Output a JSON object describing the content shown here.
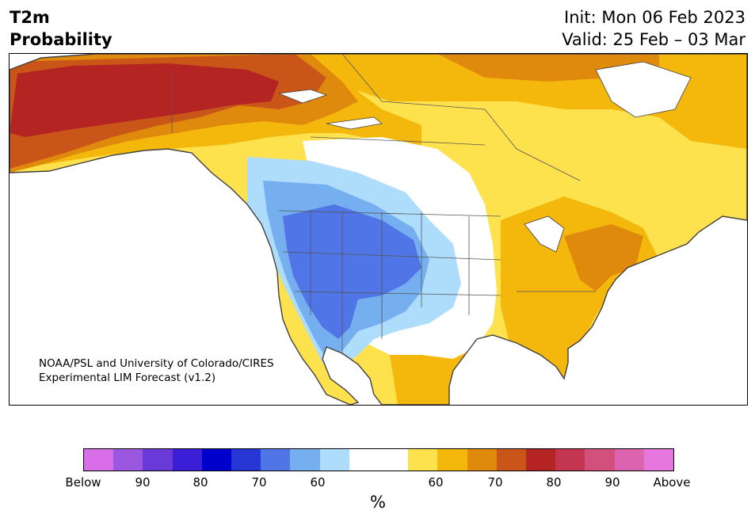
{
  "title": {
    "line1": "T2m",
    "line2": "Probability"
  },
  "dates": {
    "init": "Init: Mon 06 Feb 2023",
    "valid": "Valid: 25 Feb – 03 Mar"
  },
  "credit": {
    "line1": "NOAA/PSL and University of Colorado/CIRES",
    "line2": "Experimental LIM Forecast (v1.2)"
  },
  "colorbar": {
    "unit": "%",
    "colors": [
      "#d86fe8",
      "#9b57e0",
      "#6a3ad8",
      "#3a1fd6",
      "#0000cc",
      "#2637d6",
      "#4f75e6",
      "#76aff0",
      "#aedcfb",
      "#ffffff",
      "#ffffff",
      "#fde24e",
      "#f4b80c",
      "#e08a0d",
      "#c95618",
      "#b32422",
      "#c43550",
      "#d2507c",
      "#dc63ad",
      "#e577df"
    ],
    "tick_labels": [
      "Below",
      "90",
      "80",
      "70",
      "60",
      "60",
      "70",
      "80",
      "90",
      "Above"
    ]
  },
  "map_legend": {
    "below": {
      "60": "#aedcfb",
      "65": "#76aff0",
      "70": "#4f75e6"
    },
    "above": {
      "60": "#fde24e",
      "65": "#f4b80c",
      "70": "#e08a0d",
      "75": "#c95618",
      "80": "#b32422"
    }
  }
}
